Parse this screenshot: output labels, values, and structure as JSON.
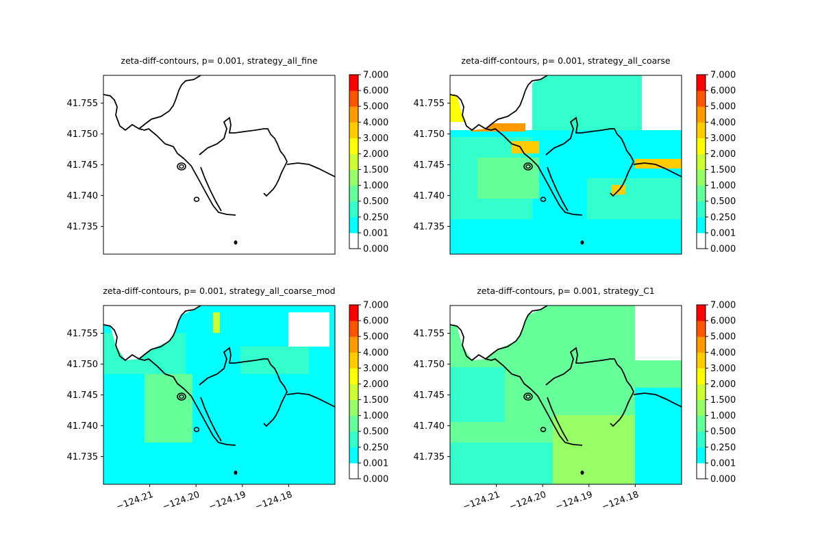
{
  "chart_data": [
    {
      "type": "heatmap",
      "title": "zeta-diff-contours, p= 0.001, strategy_all_fine",
      "xlabel": "",
      "ylabel": "",
      "xlim": [
        -124.22,
        -124.17
      ],
      "ylim": [
        41.7305,
        41.7595
      ],
      "x_ticks": [],
      "y_ticks": [
        "41.735",
        "41.740",
        "41.745",
        "41.750",
        "41.755"
      ],
      "fill": "none"
    },
    {
      "type": "heatmap",
      "title": "zeta-diff-contours, p= 0.001, strategy_all_coarse",
      "xlabel": "",
      "ylabel": "",
      "xlim": [
        -124.22,
        -124.17
      ],
      "ylim": [
        41.7305,
        41.7595
      ],
      "x_ticks": [],
      "y_ticks": [
        "41.735",
        "41.740",
        "41.745",
        "41.750",
        "41.755"
      ],
      "fill": "coarse"
    },
    {
      "type": "heatmap",
      "title": "zeta-diff-contours, p= 0.001, strategy_all_coarse_mod",
      "xlabel": "",
      "ylabel": "",
      "xlim": [
        -124.22,
        -124.17
      ],
      "ylim": [
        41.7305,
        41.7595
      ],
      "x_ticks": [
        "−124.21",
        "−124.20",
        "−124.19",
        "−124.18"
      ],
      "y_ticks": [
        "41.735",
        "41.740",
        "41.745",
        "41.750",
        "41.755"
      ],
      "fill": "coarse_mod"
    },
    {
      "type": "heatmap",
      "title": "zeta-diff-contours, p= 0.001, strategy_C1",
      "xlabel": "",
      "ylabel": "",
      "xlim": [
        -124.22,
        -124.17
      ],
      "ylim": [
        41.7305,
        41.7595
      ],
      "x_ticks": [
        "−124.21",
        "−124.20",
        "−124.19",
        "−124.18"
      ],
      "y_ticks": [
        "41.735",
        "41.740",
        "41.745",
        "41.750",
        "41.755"
      ],
      "fill": "c1"
    }
  ],
  "colorbar": {
    "levels": [
      "0.000",
      "0.001",
      "0.250",
      "0.500",
      "1.000",
      "1.500",
      "2.000",
      "3.000",
      "4.000",
      "5.000",
      "6.000",
      "7.000"
    ],
    "colors": [
      "#ffffff",
      "#00ffff",
      "#33ffcc",
      "#66ff99",
      "#99ff66",
      "#ccff33",
      "#ffff00",
      "#ffcc00",
      "#ff9900",
      "#ff5500",
      "#ff0000"
    ]
  }
}
